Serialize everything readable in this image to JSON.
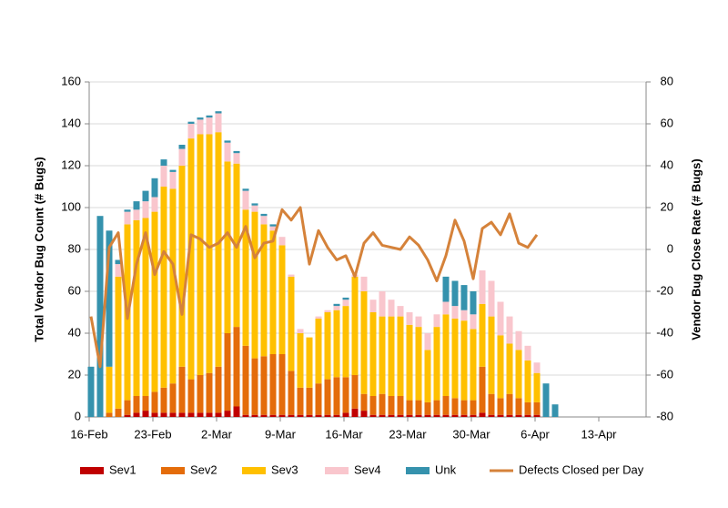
{
  "chart_data": {
    "type": "bar",
    "stacked": true,
    "categories": [
      "16-Feb",
      null,
      null,
      null,
      null,
      null,
      null,
      "23-Feb",
      null,
      null,
      null,
      null,
      null,
      null,
      "2-Mar",
      null,
      null,
      null,
      null,
      null,
      null,
      "9-Mar",
      null,
      null,
      null,
      null,
      null,
      null,
      "16-Mar",
      null,
      null,
      null,
      null,
      null,
      null,
      "23-Mar",
      null,
      null,
      null,
      null,
      null,
      null,
      "30-Mar",
      null,
      null,
      null,
      null,
      null,
      null,
      "6-Apr",
      null,
      null,
      null,
      null,
      null,
      null,
      "13-Apr",
      null,
      null,
      null,
      null,
      null
    ],
    "ylabel": "Total Vendor Bug Count (# Bugs)",
    "y2label": "Vendor Bug Close Rate (# Bugs)",
    "ylim": [
      0,
      160
    ],
    "yticks": [
      0,
      20,
      40,
      60,
      80,
      100,
      120,
      140,
      160
    ],
    "y2lim": [
      -80,
      80
    ],
    "y2ticks": [
      -80,
      -60,
      -40,
      -20,
      0,
      20,
      40,
      60,
      80
    ],
    "grid": true,
    "legend": "bottom",
    "series": [
      {
        "name": "Sev1",
        "color": "#c00000",
        "values": [
          0,
          0,
          0,
          0,
          1,
          2,
          3,
          2,
          2,
          2,
          2,
          2,
          2,
          2,
          2,
          3,
          5,
          1,
          1,
          1,
          1,
          1,
          1,
          1,
          1,
          1,
          1,
          1,
          2,
          4,
          3,
          1,
          1,
          1,
          1,
          1,
          1,
          1,
          1,
          1,
          1,
          1,
          1,
          2,
          1,
          1,
          1,
          1,
          1,
          1,
          0,
          0,
          null,
          null,
          null,
          null,
          null,
          null,
          null,
          null,
          null,
          null
        ]
      },
      {
        "name": "Sev2",
        "color": "#e46c0a",
        "values": [
          0,
          0,
          2,
          4,
          7,
          8,
          7,
          10,
          12,
          14,
          22,
          16,
          18,
          19,
          22,
          37,
          38,
          33,
          27,
          28,
          29,
          29,
          21,
          13,
          13,
          15,
          17,
          18,
          17,
          16,
          8,
          9,
          10,
          9,
          9,
          7,
          7,
          6,
          7,
          9,
          8,
          7,
          7,
          22,
          10,
          8,
          10,
          8,
          6,
          6,
          0,
          0,
          null,
          null,
          null,
          null,
          null,
          null,
          null,
          null,
          null,
          null
        ]
      },
      {
        "name": "Sev3",
        "color": "#ffc000",
        "values": [
          0,
          0,
          22,
          63,
          84,
          84,
          85,
          86,
          96,
          93,
          96,
          115,
          115,
          114,
          112,
          82,
          78,
          65,
          70,
          63,
          59,
          52,
          45,
          26,
          24,
          31,
          32,
          32,
          34,
          47,
          49,
          40,
          37,
          38,
          38,
          36,
          35,
          25,
          35,
          39,
          38,
          38,
          34,
          30,
          37,
          30,
          24,
          23,
          20,
          14,
          0,
          0,
          null,
          null,
          null,
          null,
          null,
          null,
          null,
          null,
          null,
          null
        ]
      },
      {
        "name": "Sev4",
        "color": "#f9c6cd",
        "values": [
          0,
          0,
          0,
          6,
          6,
          5,
          8,
          7,
          10,
          8,
          8,
          7,
          7,
          8,
          9,
          9,
          5,
          9,
          3,
          4,
          2,
          4,
          1,
          2,
          0,
          1,
          1,
          2,
          3,
          1,
          7,
          6,
          12,
          8,
          5,
          6,
          5,
          8,
          6,
          6,
          6,
          5,
          7,
          16,
          17,
          16,
          13,
          9,
          7,
          5,
          0,
          0,
          null,
          null,
          null,
          null,
          null,
          null,
          null,
          null,
          null,
          null
        ]
      },
      {
        "name": "Unk",
        "color": "#3592ad",
        "values": [
          24,
          96,
          65,
          2,
          1,
          4,
          5,
          9,
          3,
          1,
          2,
          1,
          1,
          1,
          1,
          1,
          1,
          1,
          1,
          1,
          1,
          0,
          0,
          0,
          0,
          0,
          0,
          1,
          1,
          0,
          0,
          0,
          0,
          0,
          0,
          0,
          0,
          0,
          0,
          12,
          12,
          12,
          11,
          0,
          0,
          0,
          0,
          0,
          0,
          0,
          16,
          6,
          null,
          null,
          null,
          null,
          null,
          null,
          null,
          null,
          null,
          null
        ]
      },
      {
        "name": "Defects Closed per Day",
        "color": "#d5823a",
        "type": "line",
        "axis": "y2",
        "values": [
          -32,
          -56,
          1,
          8,
          -33,
          -7,
          8,
          -12,
          -1,
          -7,
          -31,
          7,
          5,
          1,
          3,
          8,
          1,
          11,
          -4,
          3,
          4,
          19,
          14,
          20,
          -7,
          9,
          1,
          -5,
          -3,
          -13,
          3,
          8,
          2,
          1,
          0,
          6,
          2,
          -5,
          -15,
          -3,
          14,
          4,
          -14,
          10,
          13,
          7,
          17,
          3,
          1,
          7,
          null,
          null,
          null,
          null,
          null,
          null,
          null,
          null,
          null,
          null,
          null,
          null
        ]
      }
    ]
  }
}
